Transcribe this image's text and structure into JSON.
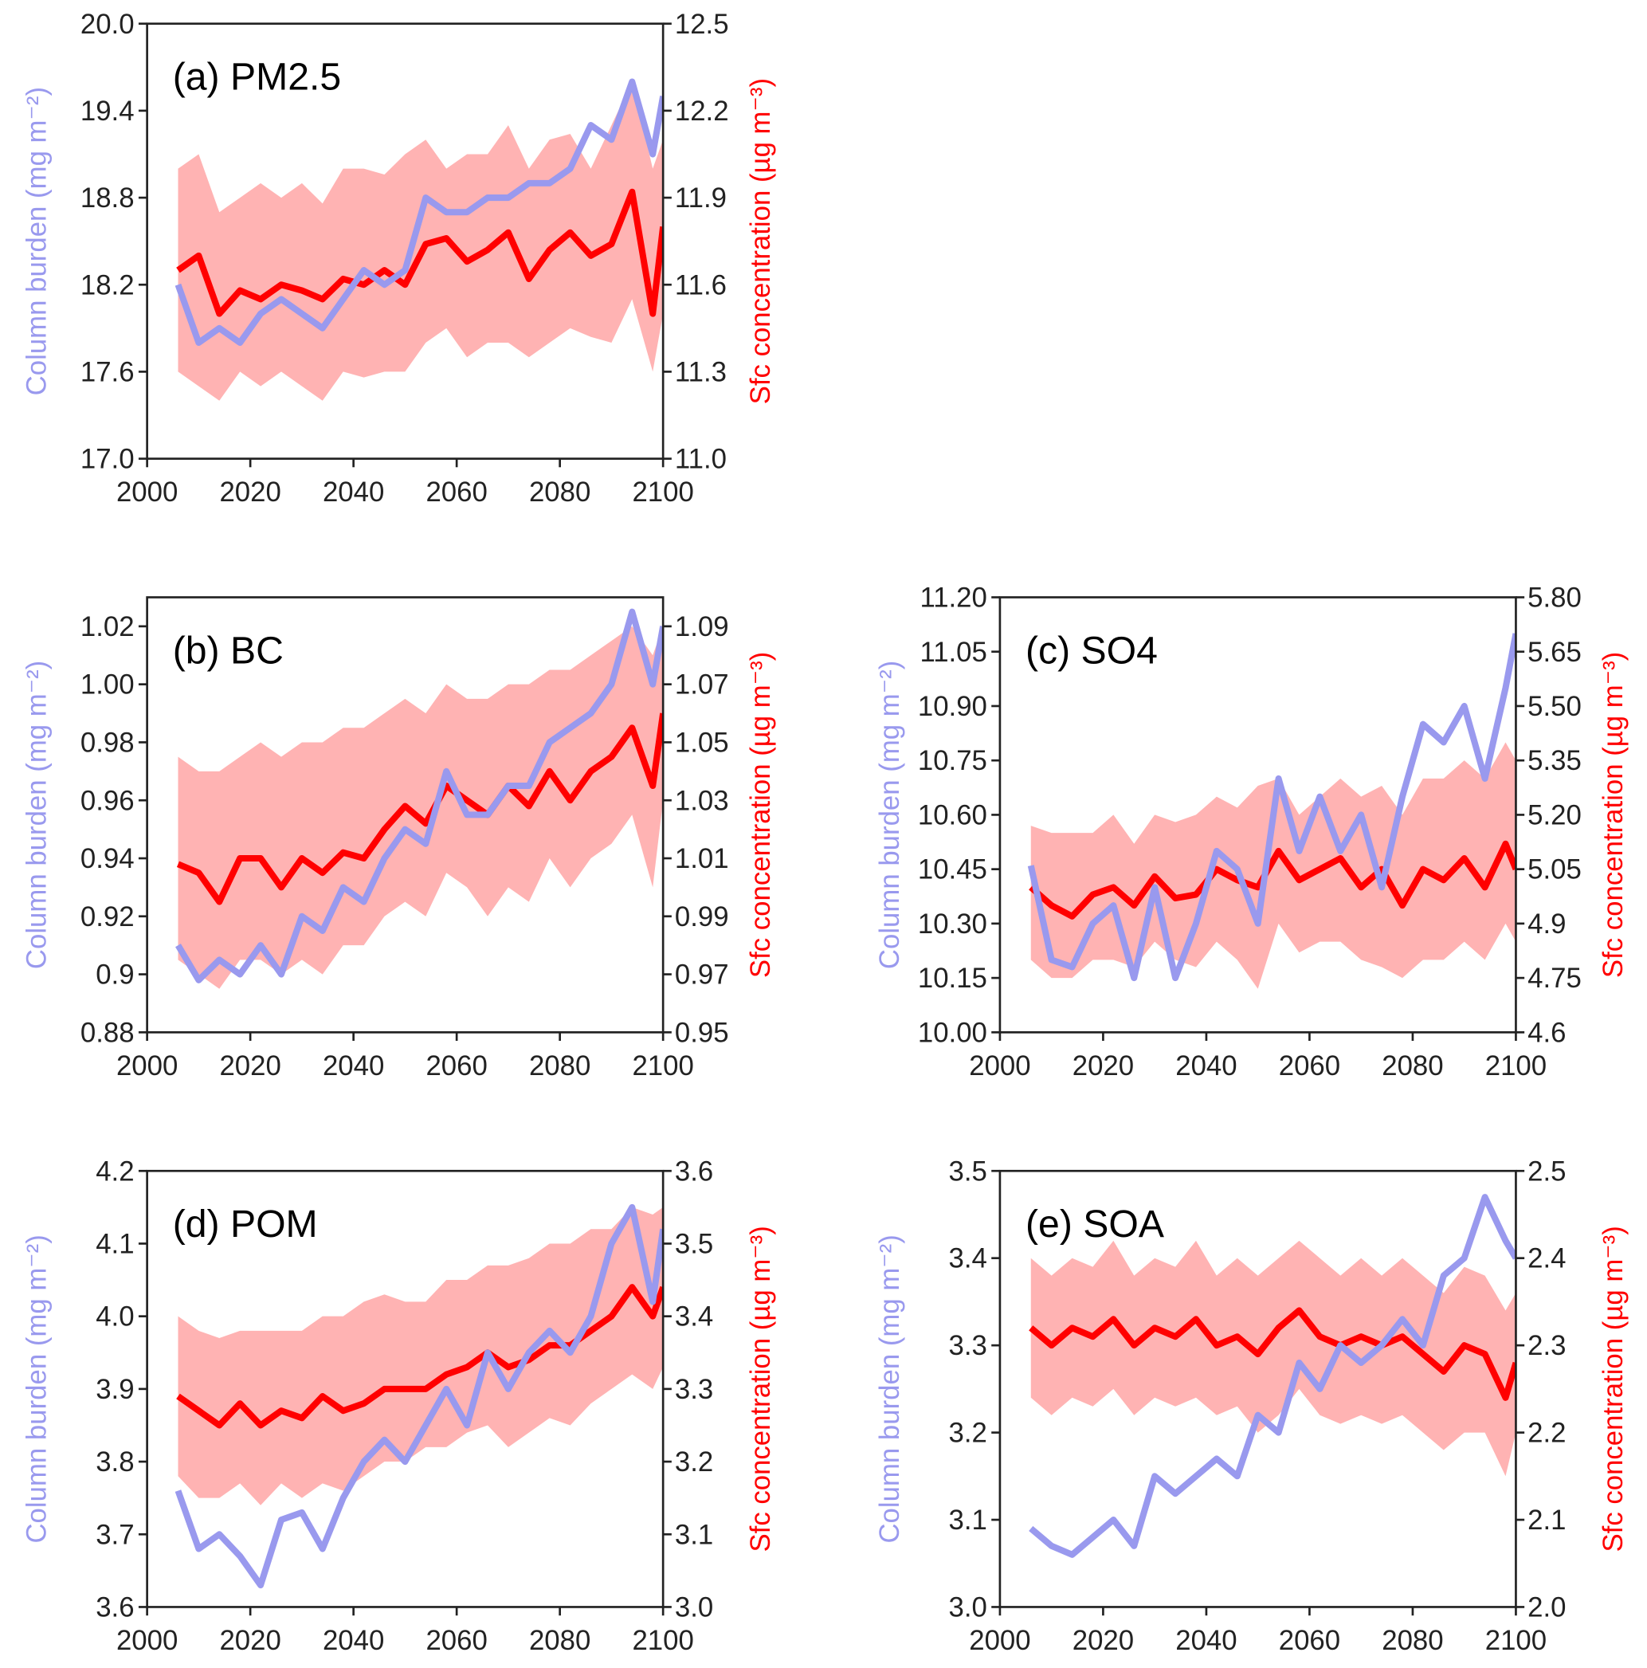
{
  "chart_data": [
    {
      "type": "line",
      "title": "(a) PM2.5",
      "ylabel": "Column burden (mg m⁻²)",
      "y2label": "Sfc concentration (µg m⁻³)",
      "x": [
        2006,
        2010,
        2014,
        2018,
        2022,
        2026,
        2030,
        2034,
        2038,
        2042,
        2046,
        2050,
        2054,
        2058,
        2062,
        2066,
        2070,
        2074,
        2078,
        2082,
        2086,
        2090,
        2094,
        2098,
        2100
      ],
      "xlim": [
        2000,
        2100
      ],
      "xticks": [
        2000,
        2020,
        2040,
        2060,
        2080,
        2100
      ],
      "ylim": [
        17,
        20
      ],
      "yticks": [
        {
          "value": 17,
          "label": "17.0"
        },
        17.6,
        18.2,
        18.8,
        19.4,
        {
          "value": 20,
          "label": "20.0"
        }
      ],
      "y2lim": [
        11,
        12.5
      ],
      "y2ticks": [
        {
          "value": 11,
          "label": "11.0"
        },
        11.3,
        11.6,
        11.9,
        12.2,
        12.5
      ],
      "series": [
        {
          "type": "band",
          "color": "#ffb3b3",
          "axis": "y2",
          "upper": [
            12.0,
            12.05,
            11.85,
            11.9,
            11.95,
            11.9,
            11.95,
            11.88,
            12.0,
            12.0,
            11.98,
            12.05,
            12.1,
            12.0,
            12.05,
            12.05,
            12.15,
            12.0,
            12.1,
            12.12,
            12.0,
            12.15,
            12.3,
            12.0,
            12.1
          ],
          "lower": [
            11.3,
            11.25,
            11.2,
            11.3,
            11.25,
            11.3,
            11.25,
            11.2,
            11.3,
            11.28,
            11.3,
            11.3,
            11.4,
            11.45,
            11.35,
            11.4,
            11.4,
            11.35,
            11.4,
            11.45,
            11.42,
            11.4,
            11.55,
            11.3,
            11.5
          ]
        },
        {
          "color": "#ff0000",
          "axis": "y2",
          "values": [
            11.65,
            11.7,
            11.5,
            11.58,
            11.55,
            11.6,
            11.58,
            11.55,
            11.62,
            11.6,
            11.65,
            11.6,
            11.74,
            11.76,
            11.68,
            11.72,
            11.78,
            11.62,
            11.72,
            11.78,
            11.7,
            11.74,
            11.92,
            11.5,
            11.8
          ]
        },
        {
          "color": "#9999ee",
          "values": [
            18.2,
            17.8,
            17.9,
            17.8,
            18.0,
            18.1,
            18.0,
            17.9,
            18.1,
            18.3,
            18.2,
            18.3,
            18.8,
            18.7,
            18.7,
            18.8,
            18.8,
            18.9,
            18.9,
            19.0,
            19.3,
            19.2,
            19.6,
            19.1,
            19.5
          ]
        }
      ]
    },
    {
      "type": "line",
      "title": "(b) BC",
      "ylabel": "Column burden (mg m⁻²)",
      "y2label": "Sfc concentration (µg m⁻³)",
      "x": [
        2006,
        2010,
        2014,
        2018,
        2022,
        2026,
        2030,
        2034,
        2038,
        2042,
        2046,
        2050,
        2054,
        2058,
        2062,
        2066,
        2070,
        2074,
        2078,
        2082,
        2086,
        2090,
        2094,
        2098,
        2100
      ],
      "xlim": [
        2000,
        2100
      ],
      "xticks": [
        2000,
        2020,
        2040,
        2060,
        2080,
        2100
      ],
      "ylim": [
        0.88,
        1.03
      ],
      "yticks": [
        0.88,
        0.9,
        0.92,
        0.94,
        0.96,
        0.98,
        {
          "value": 1,
          "label": "1.00"
        },
        1.02
      ],
      "y2lim": [
        0.95,
        1.1
      ],
      "y2ticks": [
        0.95,
        0.97,
        0.99,
        1.01,
        1.03,
        1.05,
        1.07,
        1.09
      ],
      "series": [
        {
          "type": "band",
          "color": "#ffb3b3",
          "axis": "y2",
          "upper": [
            1.045,
            1.04,
            1.04,
            1.045,
            1.05,
            1.045,
            1.05,
            1.05,
            1.055,
            1.055,
            1.06,
            1.065,
            1.06,
            1.07,
            1.065,
            1.065,
            1.07,
            1.07,
            1.075,
            1.075,
            1.08,
            1.085,
            1.09,
            1.08,
            1.09
          ],
          "lower": [
            0.975,
            0.97,
            0.965,
            0.975,
            0.975,
            0.97,
            0.975,
            0.97,
            0.98,
            0.98,
            0.99,
            0.995,
            0.99,
            1.005,
            1.0,
            0.99,
            1.0,
            0.995,
            1.01,
            1.0,
            1.01,
            1.015,
            1.025,
            1.0,
            1.03
          ]
        },
        {
          "color": "#ff0000",
          "axis": "y2",
          "values": [
            1.008,
            1.005,
            0.995,
            1.01,
            1.01,
            1.0,
            1.01,
            1.005,
            1.012,
            1.01,
            1.02,
            1.028,
            1.022,
            1.035,
            1.03,
            1.025,
            1.035,
            1.028,
            1.04,
            1.03,
            1.04,
            1.045,
            1.055,
            1.035,
            1.06
          ]
        },
        {
          "color": "#9999ee",
          "values": [
            0.91,
            0.898,
            0.905,
            0.9,
            0.91,
            0.9,
            0.92,
            0.915,
            0.93,
            0.925,
            0.94,
            0.95,
            0.945,
            0.97,
            0.955,
            0.955,
            0.965,
            0.965,
            0.98,
            0.985,
            0.99,
            1.0,
            1.025,
            1.0,
            1.02
          ]
        }
      ]
    },
    {
      "type": "line",
      "title": "(c) SO4",
      "ylabel": "Column burden (mg m⁻²)",
      "y2label": "Sfc concentration (µg m⁻³)",
      "x": [
        2006,
        2010,
        2014,
        2018,
        2022,
        2026,
        2030,
        2034,
        2038,
        2042,
        2046,
        2050,
        2054,
        2058,
        2062,
        2066,
        2070,
        2074,
        2078,
        2082,
        2086,
        2090,
        2094,
        2098,
        2100
      ],
      "xlim": [
        2000,
        2100
      ],
      "xticks": [
        2000,
        2020,
        2040,
        2060,
        2080,
        2100
      ],
      "ylim": [
        10,
        11.2
      ],
      "yticks": [
        {
          "value": 10,
          "label": "10.00"
        },
        10.15,
        {
          "value": 10.3,
          "label": "10.30"
        },
        10.45,
        {
          "value": 10.6,
          "label": "10.60"
        },
        10.75,
        {
          "value": 10.9,
          "label": "10.90"
        },
        11.05,
        {
          "value": 11.2,
          "label": "11.20"
        }
      ],
      "y2lim": [
        4.6,
        5.8
      ],
      "y2ticks": [
        4.6,
        4.75,
        4.9,
        5.05,
        {
          "value": 5.2,
          "label": "5.20"
        },
        5.35,
        {
          "value": 5.5,
          "label": "5.50"
        },
        5.65,
        {
          "value": 5.8,
          "label": "5.80"
        }
      ],
      "series": [
        {
          "type": "band",
          "color": "#ffb3b3",
          "axis": "y2",
          "upper": [
            5.17,
            5.15,
            5.15,
            5.15,
            5.2,
            5.12,
            5.2,
            5.18,
            5.2,
            5.25,
            5.22,
            5.28,
            5.3,
            5.2,
            5.25,
            5.3,
            5.25,
            5.28,
            5.2,
            5.3,
            5.3,
            5.35,
            5.3,
            5.4,
            5.35
          ],
          "lower": [
            4.8,
            4.75,
            4.75,
            4.8,
            4.8,
            4.78,
            4.85,
            4.8,
            4.78,
            4.85,
            4.8,
            4.72,
            4.9,
            4.82,
            4.85,
            4.85,
            4.8,
            4.78,
            4.75,
            4.8,
            4.8,
            4.85,
            4.8,
            4.9,
            4.85
          ]
        },
        {
          "color": "#ff0000",
          "axis": "y2",
          "values": [
            5.0,
            4.95,
            4.92,
            4.98,
            5.0,
            4.95,
            5.03,
            4.97,
            4.98,
            5.05,
            5.02,
            5.0,
            5.1,
            5.02,
            5.05,
            5.08,
            5.0,
            5.05,
            4.95,
            5.05,
            5.02,
            5.08,
            5.0,
            5.12,
            5.05
          ]
        },
        {
          "color": "#9999ee",
          "values": [
            10.46,
            10.2,
            10.18,
            10.3,
            10.35,
            10.15,
            10.4,
            10.15,
            10.3,
            10.5,
            10.45,
            10.3,
            10.7,
            10.5,
            10.65,
            10.5,
            10.6,
            10.4,
            10.65,
            10.85,
            10.8,
            10.9,
            10.7,
            10.95,
            11.1
          ]
        }
      ]
    },
    {
      "type": "line",
      "title": "(d) POM",
      "ylabel": "Column burden (mg m⁻²)",
      "y2label": "Sfc concentration (µg m⁻³)",
      "x": [
        2006,
        2010,
        2014,
        2018,
        2022,
        2026,
        2030,
        2034,
        2038,
        2042,
        2046,
        2050,
        2054,
        2058,
        2062,
        2066,
        2070,
        2074,
        2078,
        2082,
        2086,
        2090,
        2094,
        2098,
        2100
      ],
      "xlim": [
        2000,
        2100
      ],
      "xticks": [
        2000,
        2020,
        2040,
        2060,
        2080,
        2100
      ],
      "ylim": [
        3.6,
        4.2
      ],
      "yticks": [
        3.6,
        3.7,
        3.8,
        3.9,
        {
          "value": 4,
          "label": "4.0"
        },
        4.1,
        4.2
      ],
      "y2lim": [
        3,
        3.6
      ],
      "y2ticks": [
        {
          "value": 3,
          "label": "3.0"
        },
        3.1,
        3.2,
        3.3,
        3.4,
        3.5,
        3.6
      ],
      "series": [
        {
          "type": "band",
          "color": "#ffb3b3",
          "axis": "y2",
          "upper": [
            3.4,
            3.38,
            3.37,
            3.38,
            3.38,
            3.38,
            3.38,
            3.4,
            3.4,
            3.42,
            3.43,
            3.42,
            3.42,
            3.45,
            3.45,
            3.47,
            3.47,
            3.48,
            3.5,
            3.5,
            3.52,
            3.52,
            3.55,
            3.54,
            3.55
          ],
          "lower": [
            3.18,
            3.15,
            3.15,
            3.17,
            3.14,
            3.17,
            3.15,
            3.17,
            3.16,
            3.18,
            3.2,
            3.2,
            3.22,
            3.22,
            3.24,
            3.25,
            3.22,
            3.24,
            3.26,
            3.25,
            3.28,
            3.3,
            3.32,
            3.3,
            3.33
          ]
        },
        {
          "color": "#ff0000",
          "axis": "y2",
          "values": [
            3.29,
            3.27,
            3.25,
            3.28,
            3.25,
            3.27,
            3.26,
            3.29,
            3.27,
            3.28,
            3.3,
            3.3,
            3.3,
            3.32,
            3.33,
            3.35,
            3.33,
            3.34,
            3.36,
            3.36,
            3.38,
            3.4,
            3.44,
            3.4,
            3.44
          ]
        },
        {
          "color": "#9999ee",
          "values": [
            3.76,
            3.68,
            3.7,
            3.67,
            3.63,
            3.72,
            3.73,
            3.68,
            3.75,
            3.8,
            3.83,
            3.8,
            3.85,
            3.9,
            3.85,
            3.95,
            3.9,
            3.95,
            3.98,
            3.95,
            4.0,
            4.1,
            4.15,
            4.02,
            4.12
          ]
        }
      ]
    },
    {
      "type": "line",
      "title": "(e) SOA",
      "ylabel": "Column burden (mg m⁻²)",
      "y2label": "Sfc concentration (µg m⁻³)",
      "x": [
        2006,
        2010,
        2014,
        2018,
        2022,
        2026,
        2030,
        2034,
        2038,
        2042,
        2046,
        2050,
        2054,
        2058,
        2062,
        2066,
        2070,
        2074,
        2078,
        2082,
        2086,
        2090,
        2094,
        2098,
        2100
      ],
      "xlim": [
        2000,
        2100
      ],
      "xticks": [
        2000,
        2020,
        2040,
        2060,
        2080,
        2100
      ],
      "ylim": [
        3,
        3.5
      ],
      "yticks": [
        {
          "value": 3,
          "label": "3.0"
        },
        3.1,
        3.2,
        3.3,
        3.4,
        3.5
      ],
      "y2lim": [
        2,
        2.5
      ],
      "y2ticks": [
        {
          "value": 2,
          "label": "2.0"
        },
        2.1,
        2.2,
        2.3,
        2.4,
        2.5
      ],
      "series": [
        {
          "type": "band",
          "color": "#ffb3b3",
          "axis": "y2",
          "upper": [
            2.4,
            2.38,
            2.4,
            2.39,
            2.42,
            2.38,
            2.4,
            2.39,
            2.42,
            2.38,
            2.4,
            2.38,
            2.4,
            2.42,
            2.4,
            2.38,
            2.4,
            2.38,
            2.4,
            2.38,
            2.36,
            2.39,
            2.38,
            2.34,
            2.36
          ],
          "lower": [
            2.24,
            2.22,
            2.24,
            2.23,
            2.25,
            2.22,
            2.24,
            2.23,
            2.24,
            2.22,
            2.23,
            2.2,
            2.22,
            2.25,
            2.22,
            2.21,
            2.22,
            2.21,
            2.22,
            2.2,
            2.18,
            2.2,
            2.2,
            2.15,
            2.2
          ]
        },
        {
          "color": "#ff0000",
          "axis": "y2",
          "values": [
            2.32,
            2.3,
            2.32,
            2.31,
            2.33,
            2.3,
            2.32,
            2.31,
            2.33,
            2.3,
            2.31,
            2.29,
            2.32,
            2.34,
            2.31,
            2.3,
            2.31,
            2.3,
            2.31,
            2.29,
            2.27,
            2.3,
            2.29,
            2.24,
            2.28
          ]
        },
        {
          "color": "#9999ee",
          "values": [
            3.09,
            3.07,
            3.06,
            3.08,
            3.1,
            3.07,
            3.15,
            3.13,
            3.15,
            3.17,
            3.15,
            3.22,
            3.2,
            3.28,
            3.25,
            3.3,
            3.28,
            3.3,
            3.33,
            3.3,
            3.38,
            3.4,
            3.47,
            3.42,
            3.4
          ]
        }
      ]
    }
  ]
}
